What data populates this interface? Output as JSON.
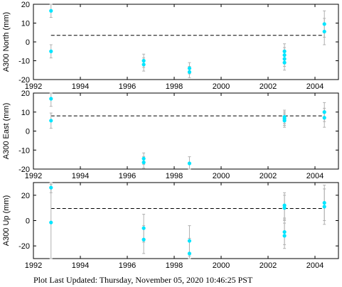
{
  "footer": "Plot Last Updated:   Thursday, November 05, 2020 10:46:25 PST",
  "chart_data": [
    {
      "type": "scatter",
      "ylabel": "A300 North (mm)",
      "xlim": [
        1992,
        2005
      ],
      "ylim": [
        -20,
        20
      ],
      "xticks": [
        1992,
        1994,
        1996,
        1998,
        2000,
        2002,
        2004
      ],
      "yticks": [
        -20,
        -10,
        0,
        10,
        20
      ],
      "mean_line": 3.5,
      "marker_color": "#00e5ff",
      "points": [
        {
          "x": 1992.75,
          "y": 16.5,
          "err": 3.5
        },
        {
          "x": 1992.75,
          "y": -5.0,
          "err": 3.5
        },
        {
          "x": 1996.7,
          "y": -10.0,
          "err": 3.5
        },
        {
          "x": 1996.7,
          "y": -12.0,
          "err": 3.5
        },
        {
          "x": 1998.65,
          "y": -14.0,
          "err": 3.0
        },
        {
          "x": 1998.65,
          "y": -16.0,
          "err": 3.0
        },
        {
          "x": 2002.7,
          "y": -5.0,
          "err": 4.0
        },
        {
          "x": 2002.7,
          "y": -7.0,
          "err": 4.0
        },
        {
          "x": 2002.7,
          "y": -9.0,
          "err": 4.0
        },
        {
          "x": 2002.7,
          "y": -11.0,
          "err": 4.0
        },
        {
          "x": 2004.4,
          "y": 9.5,
          "err": 7.0
        },
        {
          "x": 2004.4,
          "y": 5.5,
          "err": 7.0
        }
      ]
    },
    {
      "type": "scatter",
      "ylabel": "A300 East (mm)",
      "xlim": [
        1992,
        2005
      ],
      "ylim": [
        -20,
        20
      ],
      "xticks": [
        1992,
        1994,
        1996,
        1998,
        2000,
        2002,
        2004
      ],
      "yticks": [
        -20,
        -10,
        0,
        10,
        20
      ],
      "mean_line": 8.0,
      "marker_color": "#00e5ff",
      "points": [
        {
          "x": 1992.75,
          "y": 17.0,
          "err": 4.0
        },
        {
          "x": 1992.75,
          "y": 5.5,
          "err": 4.0
        },
        {
          "x": 1996.7,
          "y": -14.5,
          "err": 3.0
        },
        {
          "x": 1996.7,
          "y": -16.5,
          "err": 3.0
        },
        {
          "x": 1998.65,
          "y": -17.0,
          "err": 3.5
        },
        {
          "x": 2002.7,
          "y": 7.5,
          "err": 3.5
        },
        {
          "x": 2002.7,
          "y": 6.5,
          "err": 3.5
        },
        {
          "x": 2002.7,
          "y": 5.5,
          "err": 3.5
        },
        {
          "x": 2004.4,
          "y": 10.0,
          "err": 5.0
        },
        {
          "x": 2004.4,
          "y": 7.0,
          "err": 5.0
        }
      ]
    },
    {
      "type": "scatter",
      "ylabel": "A300 Up (mm)",
      "xlim": [
        1992,
        2005
      ],
      "ylim": [
        -30,
        30
      ],
      "xticks": [
        1992,
        1994,
        1996,
        1998,
        2000,
        2002,
        2004
      ],
      "yticks": [
        -20,
        0,
        20
      ],
      "mean_line": 9.5,
      "marker_color": "#00e5ff",
      "points": [
        {
          "x": 1992.75,
          "y": 26.0,
          "err": 4.0
        },
        {
          "x": 1992.75,
          "y": -1.5,
          "err": 30.0
        },
        {
          "x": 1996.7,
          "y": -6.0,
          "err": 11.0
        },
        {
          "x": 1996.7,
          "y": -15.0,
          "err": 11.0
        },
        {
          "x": 1998.65,
          "y": -16.0,
          "err": 12.0
        },
        {
          "x": 1998.65,
          "y": -26.0,
          "err": 12.0
        },
        {
          "x": 2002.7,
          "y": 12.0,
          "err": 10.0
        },
        {
          "x": 2002.7,
          "y": 10.0,
          "err": 10.0
        },
        {
          "x": 2002.7,
          "y": -9.0,
          "err": 10.0
        },
        {
          "x": 2002.7,
          "y": -12.0,
          "err": 10.0
        },
        {
          "x": 2004.4,
          "y": 14.0,
          "err": 14.0
        },
        {
          "x": 2004.4,
          "y": 11.0,
          "err": 14.0
        }
      ]
    }
  ]
}
